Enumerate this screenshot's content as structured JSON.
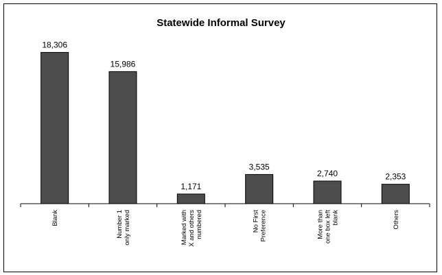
{
  "chart_data": {
    "type": "bar",
    "title": "Statewide Informal Survey",
    "xlabel": "",
    "ylabel": "",
    "categories": [
      [
        "Blank"
      ],
      [
        "Number 1",
        "only marked"
      ],
      [
        "Marked with",
        "X and others",
        "numbered"
      ],
      [
        "No First",
        "Preference"
      ],
      [
        "More than",
        "one box left",
        "blank"
      ],
      [
        "Others"
      ]
    ],
    "values": [
      18306,
      15986,
      1171,
      3535,
      2740,
      2353
    ],
    "value_labels": [
      "18,306",
      "15,986",
      "1,171",
      "3,535",
      "2,740",
      "2,353"
    ],
    "ylim": [
      0,
      20000
    ],
    "grid": false,
    "legend": "none",
    "colors": {
      "bar": "#4d4d4d",
      "outline": "#000000",
      "background": "#ffffff"
    }
  }
}
